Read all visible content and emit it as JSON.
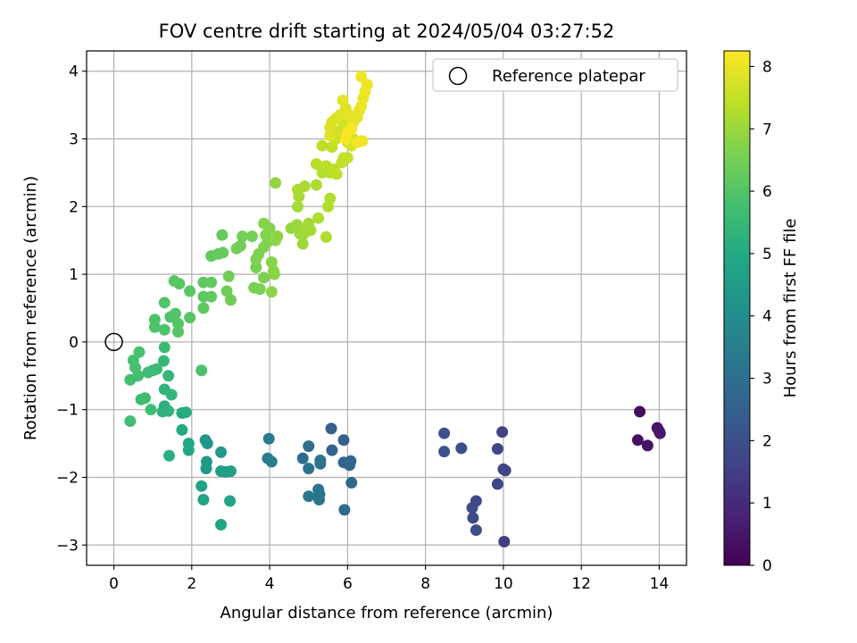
{
  "chart_data": {
    "type": "scatter",
    "title": "FOV centre drift starting at 2024/05/04 03:27:52",
    "xlabel": "Angular distance from reference (arcmin)",
    "ylabel": "Rotation from reference (arcmin)",
    "xlim": [
      -0.7,
      14.7
    ],
    "ylim": [
      -3.3,
      4.3
    ],
    "xticks": [
      0,
      2,
      4,
      6,
      8,
      10,
      12,
      14
    ],
    "xtick_labels": [
      "0",
      "2",
      "4",
      "6",
      "8",
      "10",
      "12",
      "14"
    ],
    "yticks": [
      -3,
      -2,
      -1,
      0,
      1,
      2,
      3,
      4
    ],
    "ytick_labels": [
      "−3",
      "−2",
      "−1",
      "0",
      "1",
      "2",
      "3",
      "4"
    ],
    "grid": true,
    "legend": {
      "position": "top-right",
      "entries": [
        "Reference platepar"
      ]
    },
    "reference_point": {
      "x": 0,
      "y": 0
    },
    "colormap": "viridis",
    "colorbar": {
      "label": "Hours from first FF file",
      "range": [
        0,
        8.25
      ],
      "ticks": [
        0,
        1,
        2,
        3,
        4,
        5,
        6,
        7,
        8
      ],
      "tick_labels": [
        "0",
        "1",
        "2",
        "3",
        "4",
        "5",
        "6",
        "7",
        "8"
      ]
    },
    "points": [
      {
        "x": 13.5,
        "y": -1.03,
        "t": 0.3
      },
      {
        "x": 13.45,
        "y": -1.45,
        "t": 0.35
      },
      {
        "x": 13.7,
        "y": -1.53,
        "t": 0.4
      },
      {
        "x": 13.95,
        "y": -1.27,
        "t": 0.45
      },
      {
        "x": 14.0,
        "y": -1.32,
        "t": 0.5
      },
      {
        "x": 14.02,
        "y": -1.35,
        "t": 0.55
      },
      {
        "x": 10.02,
        "y": -2.95,
        "t": 1.5
      },
      {
        "x": 9.97,
        "y": -1.33,
        "t": 1.55
      },
      {
        "x": 10.0,
        "y": -1.88,
        "t": 1.6
      },
      {
        "x": 10.05,
        "y": -1.9,
        "t": 1.65
      },
      {
        "x": 9.85,
        "y": -1.58,
        "t": 1.7
      },
      {
        "x": 9.85,
        "y": -2.1,
        "t": 1.75
      },
      {
        "x": 9.3,
        "y": -2.35,
        "t": 1.8
      },
      {
        "x": 9.2,
        "y": -2.45,
        "t": 1.85
      },
      {
        "x": 9.22,
        "y": -2.6,
        "t": 1.9
      },
      {
        "x": 9.3,
        "y": -2.78,
        "t": 1.95
      },
      {
        "x": 8.92,
        "y": -1.57,
        "t": 2.0
      },
      {
        "x": 8.48,
        "y": -1.35,
        "t": 2.05
      },
      {
        "x": 8.48,
        "y": -1.62,
        "t": 2.1
      },
      {
        "x": 5.58,
        "y": -1.28,
        "t": 2.5
      },
      {
        "x": 5.9,
        "y": -1.45,
        "t": 2.55
      },
      {
        "x": 5.6,
        "y": -1.6,
        "t": 2.6
      },
      {
        "x": 5.9,
        "y": -1.78,
        "t": 2.65
      },
      {
        "x": 6.05,
        "y": -1.82,
        "t": 2.7
      },
      {
        "x": 6.08,
        "y": -1.76,
        "t": 2.75
      },
      {
        "x": 6.1,
        "y": -2.08,
        "t": 2.8
      },
      {
        "x": 5.92,
        "y": -2.48,
        "t": 2.85
      },
      {
        "x": 5.0,
        "y": -1.54,
        "t": 2.9
      },
      {
        "x": 4.85,
        "y": -1.72,
        "t": 2.95
      },
      {
        "x": 5.0,
        "y": -1.87,
        "t": 3.0
      },
      {
        "x": 5.3,
        "y": -1.8,
        "t": 3.05
      },
      {
        "x": 5.3,
        "y": -1.75,
        "t": 3.1
      },
      {
        "x": 5.25,
        "y": -2.18,
        "t": 3.15
      },
      {
        "x": 5.28,
        "y": -2.25,
        "t": 3.2
      },
      {
        "x": 5.27,
        "y": -2.33,
        "t": 3.25
      },
      {
        "x": 5.0,
        "y": -2.28,
        "t": 3.3
      },
      {
        "x": 3.98,
        "y": -1.43,
        "t": 3.35
      },
      {
        "x": 3.95,
        "y": -1.72,
        "t": 3.4
      },
      {
        "x": 4.05,
        "y": -1.77,
        "t": 3.45
      },
      {
        "x": 2.35,
        "y": -1.45,
        "t": 4.3
      },
      {
        "x": 2.4,
        "y": -1.5,
        "t": 4.35
      },
      {
        "x": 2.38,
        "y": -1.77,
        "t": 4.4
      },
      {
        "x": 2.37,
        "y": -1.87,
        "t": 4.45
      },
      {
        "x": 2.75,
        "y": -1.63,
        "t": 4.5
      },
      {
        "x": 2.75,
        "y": -1.91,
        "t": 4.55
      },
      {
        "x": 2.87,
        "y": -1.92,
        "t": 4.6
      },
      {
        "x": 3.0,
        "y": -1.91,
        "t": 4.65
      },
      {
        "x": 2.25,
        "y": -2.13,
        "t": 4.7
      },
      {
        "x": 2.3,
        "y": -2.33,
        "t": 4.75
      },
      {
        "x": 2.98,
        "y": -2.35,
        "t": 4.8
      },
      {
        "x": 2.75,
        "y": -2.7,
        "t": 4.85
      },
      {
        "x": 1.92,
        "y": -1.5,
        "t": 4.9
      },
      {
        "x": 1.92,
        "y": -1.6,
        "t": 4.95
      },
      {
        "x": 1.75,
        "y": -1.3,
        "t": 5.0
      },
      {
        "x": 1.75,
        "y": -1.05,
        "t": 5.05
      },
      {
        "x": 1.85,
        "y": -1.04,
        "t": 5.1
      },
      {
        "x": 1.42,
        "y": -1.68,
        "t": 5.15
      },
      {
        "x": 1.3,
        "y": -0.95,
        "t": 5.2
      },
      {
        "x": 1.25,
        "y": -1.03,
        "t": 5.25
      },
      {
        "x": 1.4,
        "y": -1.02,
        "t": 5.3
      },
      {
        "x": 1.3,
        "y": -0.7,
        "t": 5.35
      },
      {
        "x": 1.48,
        "y": -0.78,
        "t": 5.4
      },
      {
        "x": 1.4,
        "y": -0.5,
        "t": 5.45
      },
      {
        "x": 1.28,
        "y": -0.28,
        "t": 5.5
      },
      {
        "x": 1.3,
        "y": -0.08,
        "t": 5.55
      },
      {
        "x": 1.1,
        "y": -0.4,
        "t": 5.58
      },
      {
        "x": 1.0,
        "y": -0.42,
        "t": 5.6
      },
      {
        "x": 0.88,
        "y": -0.45,
        "t": 5.62
      },
      {
        "x": 0.95,
        "y": -1.0,
        "t": 5.65
      },
      {
        "x": 0.8,
        "y": -0.83,
        "t": 5.68
      },
      {
        "x": 0.7,
        "y": -0.85,
        "t": 5.7
      },
      {
        "x": 0.42,
        "y": -1.17,
        "t": 5.72
      },
      {
        "x": 0.42,
        "y": -0.56,
        "t": 5.75
      },
      {
        "x": 0.62,
        "y": -0.5,
        "t": 5.78
      },
      {
        "x": 0.55,
        "y": -0.38,
        "t": 5.8
      },
      {
        "x": 0.5,
        "y": -0.27,
        "t": 5.82
      },
      {
        "x": 0.65,
        "y": -0.15,
        "t": 5.85
      },
      {
        "x": 2.25,
        "y": -0.42,
        "t": 5.88
      },
      {
        "x": 1.05,
        "y": 0.22,
        "t": 5.9
      },
      {
        "x": 1.05,
        "y": 0.33,
        "t": 5.92
      },
      {
        "x": 1.3,
        "y": 0.18,
        "t": 5.94
      },
      {
        "x": 1.3,
        "y": 0.58,
        "t": 5.96
      },
      {
        "x": 1.45,
        "y": 0.37,
        "t": 5.98
      },
      {
        "x": 1.58,
        "y": 0.42,
        "t": 6.0
      },
      {
        "x": 1.65,
        "y": 0.27,
        "t": 6.02
      },
      {
        "x": 1.65,
        "y": 0.15,
        "t": 6.04
      },
      {
        "x": 1.95,
        "y": 0.36,
        "t": 6.06
      },
      {
        "x": 1.55,
        "y": 0.9,
        "t": 6.08
      },
      {
        "x": 1.68,
        "y": 0.86,
        "t": 6.1
      },
      {
        "x": 1.95,
        "y": 0.75,
        "t": 6.12
      },
      {
        "x": 2.3,
        "y": 0.5,
        "t": 6.14
      },
      {
        "x": 2.3,
        "y": 0.67,
        "t": 6.16
      },
      {
        "x": 2.5,
        "y": 0.67,
        "t": 6.18
      },
      {
        "x": 2.3,
        "y": 0.88,
        "t": 6.2
      },
      {
        "x": 2.5,
        "y": 0.88,
        "t": 6.22
      },
      {
        "x": 2.5,
        "y": 1.27,
        "t": 6.24
      },
      {
        "x": 2.68,
        "y": 1.3,
        "t": 6.26
      },
      {
        "x": 2.8,
        "y": 1.32,
        "t": 6.28
      },
      {
        "x": 2.78,
        "y": 1.58,
        "t": 6.3
      },
      {
        "x": 2.9,
        "y": 0.75,
        "t": 6.4
      },
      {
        "x": 3.0,
        "y": 0.62,
        "t": 6.42
      },
      {
        "x": 2.95,
        "y": 0.97,
        "t": 6.44
      },
      {
        "x": 3.15,
        "y": 1.38,
        "t": 6.46
      },
      {
        "x": 3.25,
        "y": 1.42,
        "t": 6.48
      },
      {
        "x": 3.3,
        "y": 1.56,
        "t": 6.5
      },
      {
        "x": 3.55,
        "y": 1.56,
        "t": 6.52
      },
      {
        "x": 3.65,
        "y": 1.1,
        "t": 6.54
      },
      {
        "x": 3.6,
        "y": 0.8,
        "t": 6.56
      },
      {
        "x": 3.75,
        "y": 0.78,
        "t": 6.58
      },
      {
        "x": 3.85,
        "y": 0.95,
        "t": 6.6
      },
      {
        "x": 3.65,
        "y": 1.22,
        "t": 6.62
      },
      {
        "x": 3.72,
        "y": 1.3,
        "t": 6.64
      },
      {
        "x": 3.85,
        "y": 1.4,
        "t": 6.66
      },
      {
        "x": 3.95,
        "y": 1.48,
        "t": 6.68
      },
      {
        "x": 3.9,
        "y": 1.58,
        "t": 6.7
      },
      {
        "x": 4.0,
        "y": 1.68,
        "t": 6.72
      },
      {
        "x": 3.85,
        "y": 1.75,
        "t": 6.74
      },
      {
        "x": 4.05,
        "y": 1.18,
        "t": 6.76
      },
      {
        "x": 4.1,
        "y": 1.05,
        "t": 6.78
      },
      {
        "x": 4.12,
        "y": 1.0,
        "t": 6.8
      },
      {
        "x": 4.05,
        "y": 0.74,
        "t": 6.82
      },
      {
        "x": 4.15,
        "y": 1.5,
        "t": 6.84
      },
      {
        "x": 4.2,
        "y": 1.56,
        "t": 6.86
      },
      {
        "x": 4.15,
        "y": 2.35,
        "t": 6.88
      },
      {
        "x": 4.55,
        "y": 1.68,
        "t": 6.95
      },
      {
        "x": 4.7,
        "y": 1.73,
        "t": 7.0
      },
      {
        "x": 4.78,
        "y": 1.6,
        "t": 7.02
      },
      {
        "x": 4.85,
        "y": 1.45,
        "t": 7.04
      },
      {
        "x": 4.88,
        "y": 1.6,
        "t": 7.06
      },
      {
        "x": 4.95,
        "y": 1.7,
        "t": 7.08
      },
      {
        "x": 5.0,
        "y": 1.75,
        "t": 7.1
      },
      {
        "x": 5.05,
        "y": 1.65,
        "t": 7.12
      },
      {
        "x": 4.72,
        "y": 2.0,
        "t": 7.14
      },
      {
        "x": 4.75,
        "y": 2.15,
        "t": 7.16
      },
      {
        "x": 4.72,
        "y": 2.25,
        "t": 7.18
      },
      {
        "x": 4.9,
        "y": 2.3,
        "t": 7.2
      },
      {
        "x": 5.2,
        "y": 2.32,
        "t": 7.22
      },
      {
        "x": 5.25,
        "y": 1.83,
        "t": 7.24
      },
      {
        "x": 5.45,
        "y": 1.55,
        "t": 7.26
      },
      {
        "x": 5.5,
        "y": 2.0,
        "t": 7.28
      },
      {
        "x": 5.55,
        "y": 2.12,
        "t": 7.3
      },
      {
        "x": 5.35,
        "y": 2.5,
        "t": 7.32
      },
      {
        "x": 5.2,
        "y": 2.63,
        "t": 7.34
      },
      {
        "x": 5.45,
        "y": 2.6,
        "t": 7.36
      },
      {
        "x": 5.55,
        "y": 2.5,
        "t": 7.38
      },
      {
        "x": 5.65,
        "y": 2.55,
        "t": 7.4
      },
      {
        "x": 5.72,
        "y": 2.48,
        "t": 7.42
      },
      {
        "x": 5.35,
        "y": 2.9,
        "t": 7.44
      },
      {
        "x": 5.6,
        "y": 2.88,
        "t": 7.46
      },
      {
        "x": 5.85,
        "y": 2.65,
        "t": 7.48
      },
      {
        "x": 5.9,
        "y": 2.72,
        "t": 7.5
      },
      {
        "x": 6.0,
        "y": 2.72,
        "t": 7.52
      },
      {
        "x": 5.7,
        "y": 3.0,
        "t": 7.6
      },
      {
        "x": 5.75,
        "y": 3.08,
        "t": 7.62
      },
      {
        "x": 5.8,
        "y": 3.12,
        "t": 7.64
      },
      {
        "x": 5.9,
        "y": 3.2,
        "t": 7.66
      },
      {
        "x": 5.95,
        "y": 3.27,
        "t": 7.68
      },
      {
        "x": 6.0,
        "y": 2.95,
        "t": 7.7
      },
      {
        "x": 6.05,
        "y": 3.05,
        "t": 7.72
      },
      {
        "x": 6.1,
        "y": 2.9,
        "t": 7.74
      },
      {
        "x": 6.15,
        "y": 3.0,
        "t": 7.76
      },
      {
        "x": 5.55,
        "y": 3.17,
        "t": 7.78
      },
      {
        "x": 5.6,
        "y": 3.25,
        "t": 7.8
      },
      {
        "x": 5.7,
        "y": 3.3,
        "t": 7.82
      },
      {
        "x": 5.8,
        "y": 3.35,
        "t": 7.84
      },
      {
        "x": 5.55,
        "y": 3.05,
        "t": 7.86
      },
      {
        "x": 5.95,
        "y": 3.45,
        "t": 7.88
      },
      {
        "x": 5.88,
        "y": 3.57,
        "t": 7.9
      },
      {
        "x": 6.05,
        "y": 3.35,
        "t": 7.92
      },
      {
        "x": 6.15,
        "y": 3.25,
        "t": 7.94
      },
      {
        "x": 6.25,
        "y": 3.32,
        "t": 7.96
      },
      {
        "x": 6.3,
        "y": 3.42,
        "t": 7.98
      },
      {
        "x": 6.35,
        "y": 3.48,
        "t": 8.0
      },
      {
        "x": 6.4,
        "y": 3.6,
        "t": 8.02
      },
      {
        "x": 6.45,
        "y": 3.7,
        "t": 8.04
      },
      {
        "x": 6.5,
        "y": 3.8,
        "t": 8.06
      },
      {
        "x": 6.35,
        "y": 3.92,
        "t": 8.08
      },
      {
        "x": 6.38,
        "y": 2.97,
        "t": 8.1
      },
      {
        "x": 6.25,
        "y": 2.95,
        "t": 8.12
      },
      {
        "x": 6.1,
        "y": 3.15,
        "t": 8.14
      },
      {
        "x": 6.0,
        "y": 3.1,
        "t": 8.16
      },
      {
        "x": 5.95,
        "y": 3.0,
        "t": 8.18
      }
    ]
  }
}
